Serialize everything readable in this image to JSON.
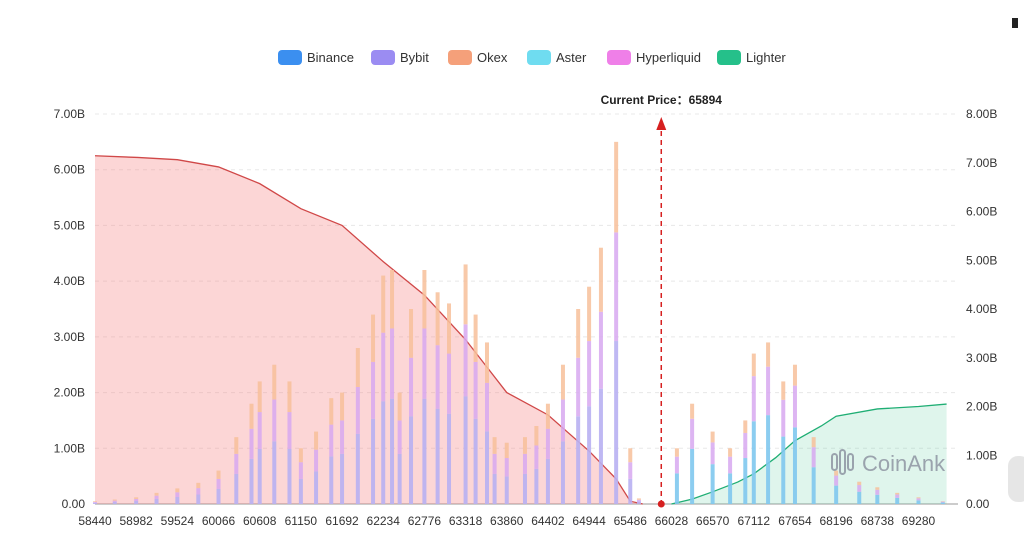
{
  "chart_data": {
    "type": "bar",
    "title": "",
    "legend": [
      "Binance",
      "Bybit",
      "Okex",
      "Aster",
      "Hyperliquid",
      "Lighter"
    ],
    "legend_colors": [
      "#3b8ff0",
      "#9b8cf2",
      "#f5a07a",
      "#6fdcf0",
      "#ef7fe8",
      "#25c08a"
    ],
    "legend_placement": "top-center",
    "x_tick_labels": [
      "58440",
      "58982",
      "59524",
      "60066",
      "60608",
      "61150",
      "61692",
      "62234",
      "62776",
      "63318",
      "63860",
      "64402",
      "64944",
      "65486",
      "66028",
      "66570",
      "67112",
      "67654",
      "68196",
      "68738",
      "69280"
    ],
    "xlim": [
      58440,
      69800
    ],
    "y_left_tick_labels": [
      "0.00",
      "1.00B",
      "2.00B",
      "3.00B",
      "4.00B",
      "5.00B",
      "6.00B",
      "7.00B"
    ],
    "y_left_lim": [
      0,
      7
    ],
    "y_right_tick_labels": [
      "0.00",
      "1.00B",
      "2.00B",
      "3.00B",
      "4.00B",
      "5.00B",
      "6.00B",
      "7.00B",
      "8.00B"
    ],
    "y_right_lim": [
      0,
      8
    ],
    "grid": true,
    "current_price": {
      "label": "Current Price：65894",
      "value": 65894
    },
    "bars_total_approx_B": [
      [
        58440,
        0.05
      ],
      [
        58700,
        0.08
      ],
      [
        58982,
        0.12
      ],
      [
        59250,
        0.2
      ],
      [
        59524,
        0.28
      ],
      [
        59800,
        0.38
      ],
      [
        60066,
        0.6
      ],
      [
        60300,
        1.2
      ],
      [
        60500,
        1.8
      ],
      [
        60608,
        2.2
      ],
      [
        60800,
        2.5
      ],
      [
        61000,
        2.2
      ],
      [
        61150,
        1.0
      ],
      [
        61350,
        1.3
      ],
      [
        61550,
        1.9
      ],
      [
        61692,
        2.0
      ],
      [
        61900,
        2.8
      ],
      [
        62100,
        3.4
      ],
      [
        62234,
        4.1
      ],
      [
        62350,
        4.2
      ],
      [
        62450,
        2.0
      ],
      [
        62600,
        3.5
      ],
      [
        62776,
        4.2
      ],
      [
        62950,
        3.8
      ],
      [
        63100,
        3.6
      ],
      [
        63318,
        4.3
      ],
      [
        63450,
        3.4
      ],
      [
        63600,
        2.9
      ],
      [
        63700,
        1.2
      ],
      [
        63860,
        1.1
      ],
      [
        64100,
        1.2
      ],
      [
        64250,
        1.4
      ],
      [
        64402,
        1.8
      ],
      [
        64600,
        2.5
      ],
      [
        64800,
        3.5
      ],
      [
        64944,
        3.9
      ],
      [
        65100,
        4.6
      ],
      [
        65300,
        6.5
      ],
      [
        65486,
        1.0
      ],
      [
        65600,
        0.1
      ],
      [
        66100,
        1.0
      ],
      [
        66300,
        1.8
      ],
      [
        66570,
        1.3
      ],
      [
        66800,
        1.0
      ],
      [
        67000,
        1.5
      ],
      [
        67112,
        2.7
      ],
      [
        67300,
        2.9
      ],
      [
        67500,
        2.2
      ],
      [
        67654,
        2.5
      ],
      [
        67900,
        1.2
      ],
      [
        68196,
        0.6
      ],
      [
        68500,
        0.4
      ],
      [
        68738,
        0.3
      ],
      [
        69000,
        0.2
      ],
      [
        69280,
        0.12
      ],
      [
        69600,
        0.05
      ]
    ],
    "cumulative_short_left_B": [
      [
        58440,
        6.25
      ],
      [
        59000,
        6.22
      ],
      [
        59524,
        6.18
      ],
      [
        60066,
        6.05
      ],
      [
        60608,
        5.75
      ],
      [
        61150,
        5.3
      ],
      [
        61692,
        5.0
      ],
      [
        62234,
        4.35
      ],
      [
        62776,
        3.75
      ],
      [
        63318,
        2.95
      ],
      [
        63860,
        2.0
      ],
      [
        64402,
        1.6
      ],
      [
        64944,
        0.95
      ],
      [
        65300,
        0.45
      ],
      [
        65486,
        0.05
      ],
      [
        65650,
        0.0
      ]
    ],
    "cumulative_long_right_B": [
      [
        66028,
        0.0
      ],
      [
        66300,
        0.1
      ],
      [
        66570,
        0.25
      ],
      [
        66900,
        0.45
      ],
      [
        67112,
        0.62
      ],
      [
        67400,
        0.95
      ],
      [
        67654,
        1.3
      ],
      [
        68000,
        1.6
      ],
      [
        68196,
        1.8
      ],
      [
        68738,
        1.95
      ],
      [
        69280,
        2.0
      ],
      [
        69650,
        2.05
      ]
    ]
  },
  "watermark": "CoinAnk"
}
